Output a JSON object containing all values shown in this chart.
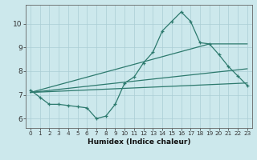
{
  "xlabel": "Humidex (Indice chaleur)",
  "background_color": "#cce8ec",
  "grid_color": "#aacdd4",
  "line_color": "#2d7a6e",
  "xlim": [
    -0.5,
    23.5
  ],
  "ylim": [
    5.6,
    10.8
  ],
  "xticks": [
    0,
    1,
    2,
    3,
    4,
    5,
    6,
    7,
    8,
    9,
    10,
    11,
    12,
    13,
    14,
    15,
    16,
    17,
    18,
    19,
    20,
    21,
    22,
    23
  ],
  "yticks": [
    6,
    7,
    8,
    9,
    10
  ],
  "series1_x": [
    0,
    1,
    2,
    3,
    4,
    5,
    6,
    7,
    8,
    9,
    10,
    11,
    12,
    13,
    14,
    15,
    16,
    17,
    18,
    19,
    20,
    21,
    22,
    23
  ],
  "series1_y": [
    7.2,
    6.9,
    6.6,
    6.6,
    6.55,
    6.5,
    6.45,
    6.0,
    6.1,
    6.6,
    7.5,
    7.75,
    8.35,
    8.8,
    9.7,
    10.1,
    10.5,
    10.1,
    9.2,
    9.15,
    8.7,
    8.2,
    7.8,
    7.4
  ],
  "series2_x": [
    0,
    23
  ],
  "series2_y": [
    7.1,
    7.5
  ],
  "series3_x": [
    0,
    23
  ],
  "series3_y": [
    7.1,
    8.1
  ],
  "series4_x": [
    0,
    19,
    23
  ],
  "series4_y": [
    7.1,
    9.15,
    9.15
  ]
}
